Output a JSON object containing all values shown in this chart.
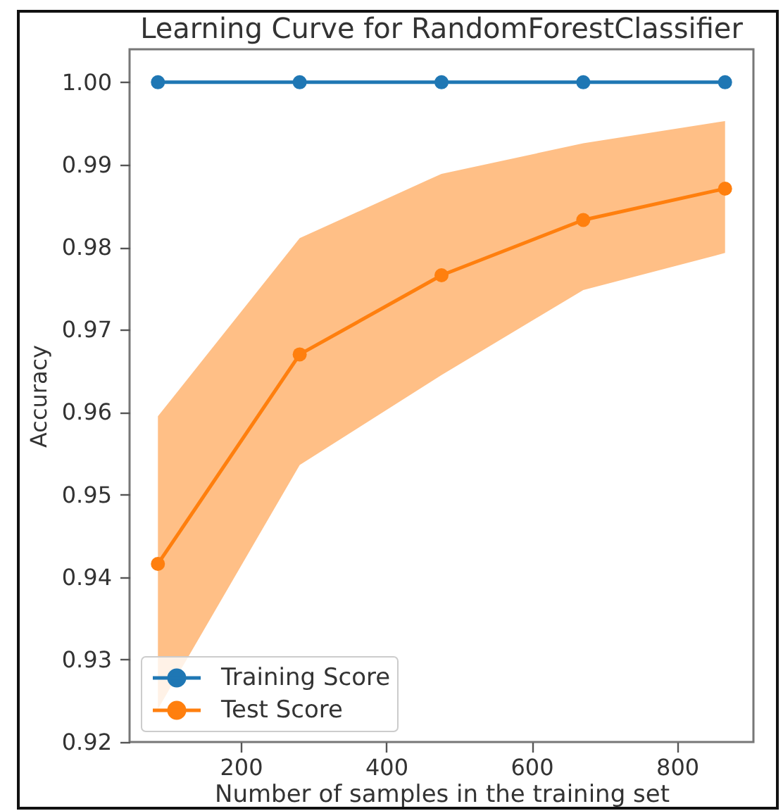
{
  "chart_data": {
    "type": "line",
    "title": "Learning Curve for RandomForestClassifier",
    "xlabel": "Number of samples in the training set",
    "ylabel": "Accuracy",
    "x": [
      86,
      281,
      476,
      671,
      866
    ],
    "series": [
      {
        "name": "Training Score",
        "color": "#1f77b4",
        "values": [
          1,
          1,
          1,
          1,
          1
        ]
      },
      {
        "name": "Test Score",
        "color": "#ff7f0e",
        "values": [
          0.9416,
          0.967,
          0.9766,
          0.9833,
          0.9871
        ],
        "lower": [
          0.924,
          0.9536,
          0.9645,
          0.9748,
          0.9793
        ],
        "upper": [
          0.9595,
          0.9811,
          0.9889,
          0.9926,
          0.9953
        ]
      }
    ],
    "xlim": [
      47,
      905
    ],
    "ylim": [
      0.92,
      1.004
    ],
    "xticks": [
      200,
      400,
      600,
      800
    ],
    "yticks": [
      0.92,
      0.93,
      0.94,
      0.95,
      0.96,
      0.97,
      0.98,
      0.99,
      {
        "value": 1,
        "label": "1.00"
      }
    ],
    "legend": "bottom left",
    "marker": "circle"
  }
}
